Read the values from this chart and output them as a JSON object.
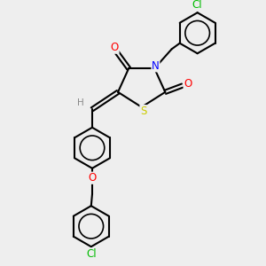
{
  "background_color": "#eeeeee",
  "atom_colors": {
    "N": "#0000ff",
    "O": "#ff0000",
    "S": "#cccc00",
    "Cl": "#00bb00",
    "H": "#888888",
    "C": "#000000"
  },
  "bond_lw": 1.5,
  "font_size": 8.5
}
